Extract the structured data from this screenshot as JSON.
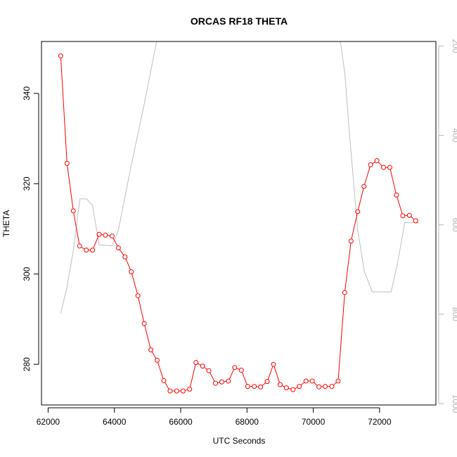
{
  "chart_data": {
    "type": "line",
    "title": "ORCAS RF18 THETA",
    "xlabel": "UTC Seconds",
    "ylabel": "THETA",
    "xlim": [
      61800,
      73700
    ],
    "ylim": [
      271,
      351.5
    ],
    "y2lim": [
      1003,
      190
    ],
    "x_ticks": [
      62000,
      64000,
      66000,
      68000,
      70000,
      72000
    ],
    "x_tick_labels": [
      "62000",
      "64000",
      "66000",
      "68000",
      "70000",
      "72000"
    ],
    "y_ticks": [
      280,
      300,
      320,
      340
    ],
    "y_tick_labels": [
      "280",
      "300",
      "320",
      "340"
    ],
    "y2_ticks": [
      200,
      400,
      600,
      800,
      1000
    ],
    "y2_tick_labels": [
      "200",
      "400",
      "600",
      "800",
      "1000"
    ],
    "grid": false,
    "series": [
      {
        "color": "#ff0000",
        "marker": "open-circle",
        "axis": "left",
        "x": [
          62380,
          62570,
          62760,
          62950,
          63150,
          63340,
          63540,
          63730,
          63930,
          64120,
          64320,
          64510,
          64710,
          64900,
          65100,
          65290,
          65490,
          65680,
          65880,
          66070,
          66270,
          66460,
          66660,
          66850,
          67050,
          67240,
          67440,
          67630,
          67830,
          68020,
          68220,
          68410,
          68610,
          68800,
          69000,
          69190,
          69390,
          69580,
          69780,
          69970,
          70170,
          70360,
          70560,
          70750,
          70950,
          71140,
          71340,
          71530,
          71730,
          71920,
          72120,
          72310,
          72510,
          72700,
          72900,
          73090
        ],
        "y": [
          348.3,
          324.5,
          314.0,
          306.2,
          305.3,
          305.3,
          308.8,
          308.6,
          308.4,
          305.8,
          303.8,
          300.5,
          295.2,
          289.0,
          283.2,
          280.9,
          276.4,
          274.1,
          274.1,
          274.1,
          274.5,
          280.4,
          279.6,
          278.6,
          275.8,
          276.1,
          276.3,
          279.3,
          278.7,
          275.1,
          275.1,
          275.0,
          276.2,
          280.0,
          275.5,
          274.8,
          274.4,
          275.1,
          276.3,
          276.3,
          275.0,
          275.1,
          275.1,
          276.3,
          295.9,
          307.3,
          313.8,
          319.4,
          324.2,
          325.1,
          323.6,
          323.6,
          317.5,
          312.9,
          313.0,
          311.8
        ]
      },
      {
        "color": "#bebebe",
        "marker": "none",
        "axis": "right",
        "x": [
          62380,
          62560,
          62760,
          62960,
          63160,
          63340,
          63540,
          63930,
          64120,
          64500,
          64900,
          65300,
          65530,
          66120,
          66540,
          66760,
          66910,
          67500,
          68000,
          68600,
          68700,
          69500,
          70000,
          70500,
          70800,
          70950,
          71100,
          71340,
          71540,
          71780,
          71950,
          72350,
          72550,
          72760,
          73180
        ],
        "y": [
          798,
          743,
          657,
          542,
          542,
          557,
          645,
          647,
          612,
          470,
          330,
          180,
          180,
          180,
          180,
          171,
          180,
          180,
          180,
          180,
          180,
          180,
          180,
          180,
          180,
          260,
          404,
          611,
          704,
          750,
          750,
          750,
          683,
          595,
          596
        ]
      }
    ]
  }
}
